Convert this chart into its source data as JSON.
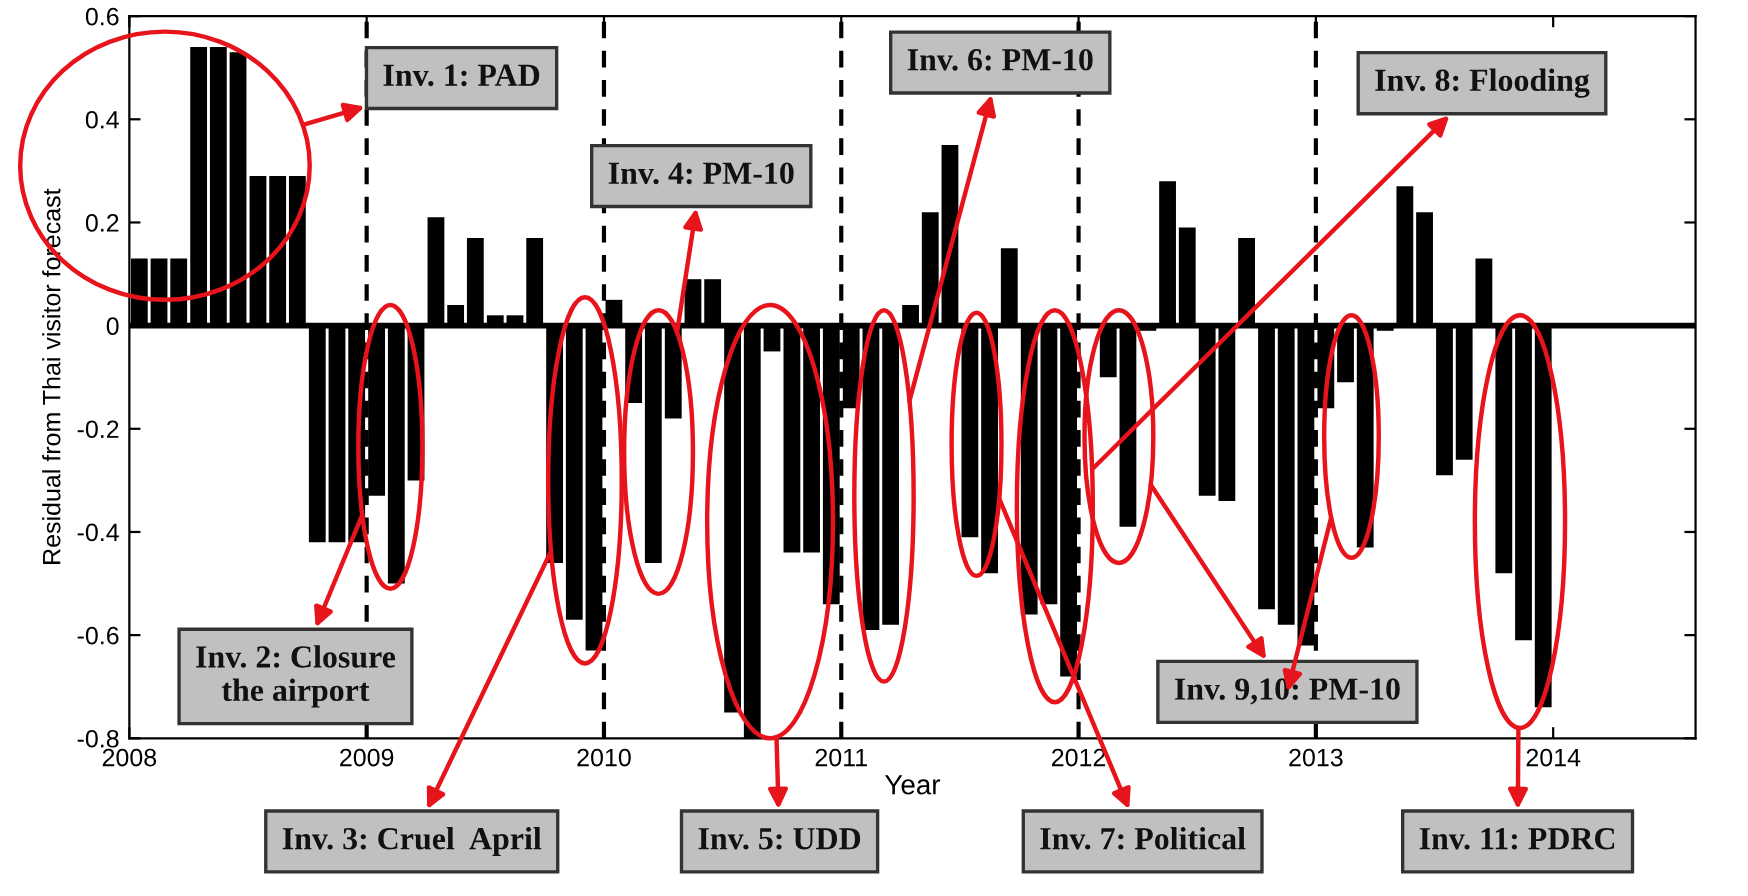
{
  "chart_data": {
    "type": "bar",
    "xlabel": "Year",
    "ylabel": "Residual from Thai visitor forecast",
    "x": [
      2008.042,
      2008.125,
      2008.208,
      2008.292,
      2008.375,
      2008.458,
      2008.542,
      2008.625,
      2008.708,
      2008.792,
      2008.875,
      2008.958,
      2009.042,
      2009.125,
      2009.208,
      2009.292,
      2009.375,
      2009.458,
      2009.542,
      2009.625,
      2009.708,
      2009.792,
      2009.875,
      2009.958,
      2010.042,
      2010.125,
      2010.208,
      2010.292,
      2010.375,
      2010.458,
      2010.542,
      2010.625,
      2010.708,
      2010.792,
      2010.875,
      2010.958,
      2011.042,
      2011.125,
      2011.208,
      2011.292,
      2011.375,
      2011.458,
      2011.542,
      2011.625,
      2011.708,
      2011.792,
      2011.875,
      2011.958,
      2012.042,
      2012.125,
      2012.208,
      2012.292,
      2012.375,
      2012.458,
      2012.542,
      2012.625,
      2012.708,
      2012.792,
      2012.875,
      2012.958,
      2013.042,
      2013.125,
      2013.208,
      2013.292,
      2013.375,
      2013.458,
      2013.542,
      2013.625,
      2013.708,
      2013.792,
      2013.875,
      2013.958
    ],
    "values": [
      0.13,
      0.13,
      0.13,
      0.54,
      0.54,
      0.53,
      0.29,
      0.29,
      0.29,
      -0.42,
      -0.42,
      -0.42,
      -0.33,
      -0.5,
      -0.3,
      0.21,
      0.04,
      0.17,
      0.02,
      0.02,
      0.17,
      -0.46,
      -0.57,
      -0.63,
      0.05,
      -0.15,
      -0.46,
      -0.18,
      0.09,
      0.09,
      -0.75,
      -0.8,
      -0.05,
      -0.44,
      -0.44,
      -0.54,
      -0.16,
      -0.59,
      -0.58,
      0.04,
      0.22,
      0.35,
      -0.41,
      -0.48,
      0.15,
      -0.56,
      -0.54,
      -0.68,
      0.0,
      -0.1,
      -0.39,
      -0.01,
      0.28,
      0.19,
      -0.33,
      -0.34,
      0.17,
      -0.55,
      -0.58,
      -0.62,
      -0.16,
      -0.11,
      -0.43,
      -0.01,
      0.27,
      0.22,
      -0.29,
      -0.26,
      0.13,
      -0.48,
      -0.61,
      -0.74
    ],
    "color": "#000000",
    "xlim": [
      2008,
      2014.6
    ],
    "xticks": [
      2008,
      2009,
      2010,
      2011,
      2012,
      2013,
      2014
    ],
    "ylim": [
      -0.8,
      0.6
    ],
    "yticks": [
      -0.8,
      -0.6,
      -0.4,
      -0.2,
      0,
      0.2,
      0.4,
      0.6
    ],
    "grid": false,
    "ref_lines": [
      {
        "axis": "x",
        "value": 2009,
        "color": "#000000",
        "line_style": "dashed"
      },
      {
        "axis": "x",
        "value": 2010,
        "color": "#000000",
        "line_style": "dashed"
      },
      {
        "axis": "x",
        "value": 2011,
        "color": "#000000",
        "line_style": "dashed"
      },
      {
        "axis": "x",
        "value": 2012,
        "color": "#000000",
        "line_style": "dashed"
      },
      {
        "axis": "x",
        "value": 2013,
        "color": "#000000",
        "line_style": "dashed"
      },
      {
        "axis": "y",
        "value": 0,
        "color": "#000000",
        "line_style": "solid"
      }
    ],
    "annotations": [
      "Inv. 1: PAD",
      "Inv. 2: Closure\nthe airport",
      "Inv. 3: Cruel  April",
      "Inv. 4: PM-10",
      "Inv. 5: UDD",
      "Inv. 6: PM-10",
      "Inv. 7: Political",
      "Inv. 8: Flooding",
      "Inv. 9,10: PM-10",
      "Inv. 11: PDRC"
    ]
  }
}
